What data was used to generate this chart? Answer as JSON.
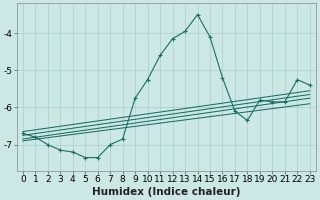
{
  "xlabel": "Humidex (Indice chaleur)",
  "ylabel": "",
  "bg_color": "#cce8e4",
  "line_color": "#1a6e62",
  "grid_color": "#aacfcb",
  "xlim": [
    -0.5,
    23.5
  ],
  "ylim": [
    -7.7,
    -3.2
  ],
  "yticks": [
    -7,
    -6,
    -5,
    -4
  ],
  "xticks": [
    0,
    1,
    2,
    3,
    4,
    5,
    6,
    7,
    8,
    9,
    10,
    11,
    12,
    13,
    14,
    15,
    16,
    17,
    18,
    19,
    20,
    21,
    22,
    23
  ],
  "main_x": [
    0,
    1,
    2,
    3,
    4,
    5,
    6,
    7,
    8,
    9,
    10,
    11,
    12,
    13,
    14,
    15,
    16,
    17,
    18,
    19,
    20,
    21,
    22,
    23
  ],
  "main_y": [
    -6.7,
    -6.8,
    -7.0,
    -7.15,
    -7.2,
    -7.35,
    -7.35,
    -7.0,
    -6.85,
    -5.75,
    -5.25,
    -4.6,
    -4.15,
    -3.95,
    -3.5,
    -4.1,
    -5.2,
    -6.1,
    -6.35,
    -5.8,
    -5.85,
    -5.85,
    -5.25,
    -5.4
  ],
  "reg_lines": [
    {
      "x": [
        0,
        23
      ],
      "y": [
        -6.65,
        -5.55
      ]
    },
    {
      "x": [
        0,
        23
      ],
      "y": [
        -6.75,
        -5.65
      ]
    },
    {
      "x": [
        0,
        23
      ],
      "y": [
        -6.85,
        -5.75
      ]
    },
    {
      "x": [
        0,
        23
      ],
      "y": [
        -6.9,
        -5.9
      ]
    }
  ],
  "tick_fontsize": 6.5,
  "label_fontsize": 7.5
}
